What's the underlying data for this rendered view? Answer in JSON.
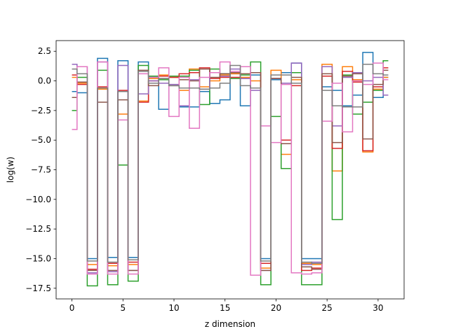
{
  "chart_data": {
    "type": "line",
    "step": "mid",
    "xlabel": "z dimension",
    "ylabel": "log(w)",
    "xlim": [
      -1.55,
      32.55
    ],
    "ylim": [
      -18.4,
      3.4
    ],
    "xticks": [
      0,
      5,
      10,
      15,
      20,
      25,
      30
    ],
    "yticks": [
      2.5,
      0.0,
      -2.5,
      -5.0,
      -7.5,
      -10.0,
      -12.5,
      -15.0,
      -17.5
    ],
    "ytick_labels": [
      "2.5",
      "0.0",
      "−2.5",
      "−5.0",
      "−7.5",
      "−10.0",
      "−12.5",
      "−15.0",
      "−17.5"
    ],
    "grid": false,
    "x": [
      0,
      1,
      2,
      3,
      4,
      5,
      6,
      7,
      8,
      9,
      10,
      11,
      12,
      13,
      14,
      15,
      16,
      17,
      18,
      19,
      20,
      21,
      22,
      23,
      24,
      25,
      26,
      27,
      28,
      29,
      30,
      31
    ],
    "series": [
      {
        "color": "#1f77b4",
        "values": [
          -0.9,
          -1.0,
          -15.0,
          1.9,
          -14.9,
          1.7,
          -14.9,
          1.6,
          0.3,
          -2.4,
          0.4,
          -2.2,
          -2.2,
          -0.9,
          -1.9,
          -1.6,
          0.6,
          -2.1,
          0.5,
          -15.0,
          0.1,
          0.7,
          1.5,
          -15.0,
          -15.0,
          -0.5,
          -0.8,
          -2.1,
          -1.2,
          2.4,
          -1.4,
          0.3
        ]
      },
      {
        "color": "#ff7f0e",
        "values": [
          0.3,
          -0.2,
          -15.5,
          -0.7,
          -15.6,
          -2.8,
          -15.5,
          -1.7,
          0.2,
          0.5,
          0.3,
          -0.8,
          1.0,
          -0.5,
          0.0,
          0.5,
          0.6,
          0.3,
          0.0,
          -15.8,
          0.9,
          -6.2,
          0.1,
          -15.4,
          -15.5,
          1.4,
          -7.6,
          1.2,
          0.1,
          -6.0,
          -0.7,
          0.3
        ]
      },
      {
        "color": "#2ca02c",
        "values": [
          -2.5,
          0.3,
          -17.3,
          0.9,
          -17.2,
          -7.1,
          -16.9,
          1.3,
          0.4,
          0.1,
          0.4,
          0.4,
          0.9,
          -2.0,
          1.0,
          0.6,
          0.2,
          0.5,
          1.6,
          -17.2,
          -3.0,
          -7.4,
          0.7,
          -17.2,
          -17.2,
          0.4,
          -11.7,
          0.5,
          -2.8,
          -1.8,
          -0.8,
          1.7
        ]
      },
      {
        "color": "#d62728",
        "values": [
          0.5,
          -0.3,
          -15.9,
          -0.5,
          -15.4,
          -0.8,
          -15.3,
          -1.8,
          0.0,
          0.4,
          0.3,
          0.6,
          0.7,
          1.1,
          0.2,
          0.3,
          0.3,
          0.2,
          0.7,
          -15.4,
          0.2,
          -5.0,
          -0.4,
          -16.0,
          -15.8,
          0.4,
          -5.7,
          0.8,
          -0.1,
          -5.9,
          -0.5,
          1.1
        ]
      },
      {
        "color": "#9467bd",
        "values": [
          1.4,
          1.2,
          -16.2,
          1.6,
          -16.1,
          1.3,
          -16.0,
          -1.1,
          0.0,
          -0.2,
          -0.3,
          -2.1,
          0.1,
          -0.7,
          0.7,
          0.4,
          1.0,
          0.2,
          -0.8,
          -16.0,
          0.2,
          -0.2,
          1.5,
          -15.5,
          -15.3,
          1.2,
          -3.8,
          0.3,
          0.7,
          0.0,
          0.3,
          -1.2
        ]
      },
      {
        "color": "#8c564b",
        "values": [
          -1.4,
          -0.1,
          -16.0,
          -1.8,
          -16.0,
          -1.6,
          -16.0,
          0.9,
          -0.4,
          0.2,
          -0.4,
          0.1,
          0.0,
          1.0,
          0.3,
          0.6,
          0.7,
          0.6,
          0.7,
          -16.0,
          0.2,
          -5.3,
          0.3,
          -15.7,
          -15.9,
          0.6,
          -5.2,
          0.4,
          0.6,
          -4.9,
          -0.3,
          0.9
        ]
      },
      {
        "color": "#e377c2",
        "values": [
          -4.1,
          1.2,
          -16.3,
          1.6,
          -16.3,
          -3.3,
          -16.3,
          0.6,
          0.3,
          1.1,
          -3.0,
          0.3,
          -4.0,
          0.3,
          0.7,
          1.6,
          0.8,
          1.2,
          -16.4,
          -3.8,
          -5.2,
          -0.3,
          -16.2,
          -16.3,
          -16.2,
          -3.4,
          -0.2,
          -4.3,
          0.0,
          -0.3,
          1.5,
          0.1
        ]
      },
      {
        "color": "#7f7f7f",
        "values": [
          1.0,
          0.6,
          -15.2,
          -0.6,
          -15.3,
          -0.9,
          -15.1,
          0.8,
          -0.2,
          0.2,
          -0.4,
          -0.6,
          -0.6,
          -0.7,
          -0.6,
          -0.2,
          1.3,
          -0.4,
          -0.6,
          -15.2,
          0.5,
          0.5,
          -0.2,
          -15.3,
          -15.4,
          -0.8,
          -2.1,
          -2.2,
          -2.2,
          1.4,
          0.6,
          0.5
        ]
      }
    ]
  }
}
